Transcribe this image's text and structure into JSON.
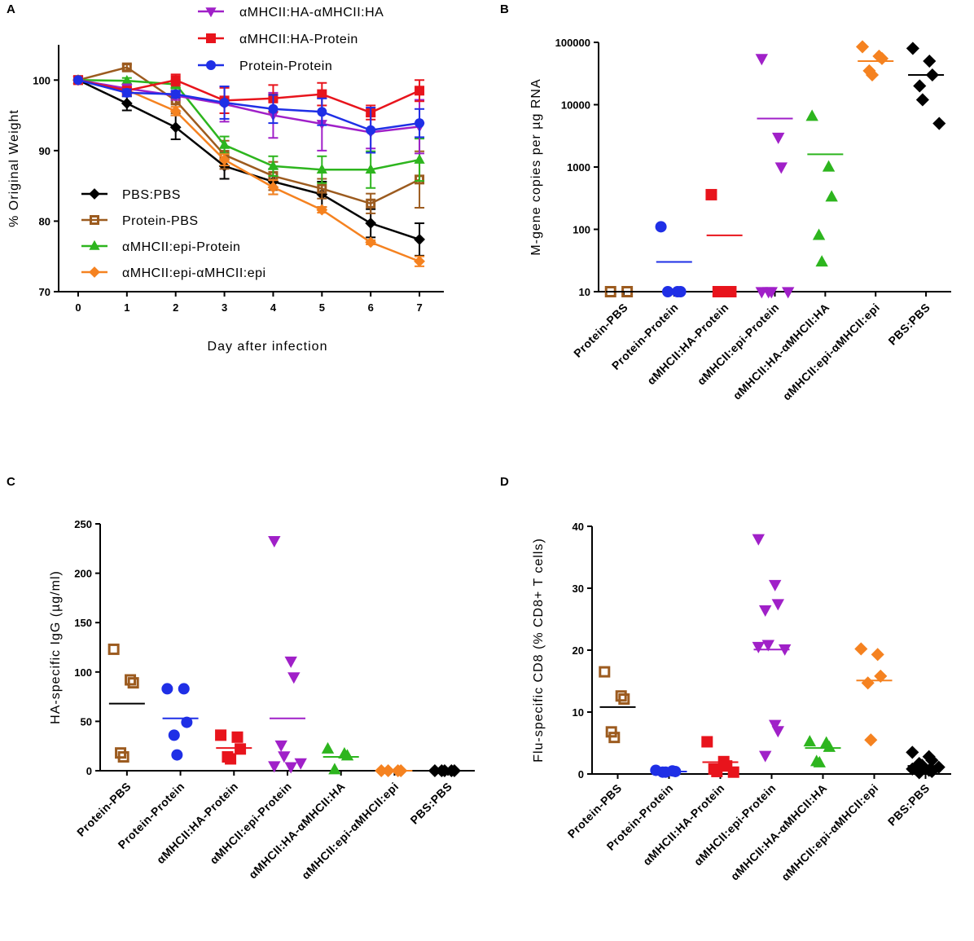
{
  "chart_data": [
    {
      "panel": "A",
      "type": "line",
      "xlabel": "Day after infection",
      "ylabel": "% Original Weight",
      "xlim": [
        -0.4,
        7.5
      ],
      "ylim": [
        70,
        105
      ],
      "xticks": [
        0,
        1,
        2,
        3,
        4,
        5,
        6,
        7
      ],
      "yticks": [
        70,
        80,
        90,
        100
      ],
      "legend_top": [
        "αMHCII:HA-αMHCII:HA",
        "αMHCII:HA-Protein",
        "Protein-Protein"
      ],
      "legend_bottom": [
        "PBS:PBS",
        "Protein-PBS",
        "αMHCII:epi-Protein",
        "αMHCII:epi-αMHCII:epi"
      ],
      "series": [
        {
          "name": "PBS:PBS",
          "color": "#000000",
          "marker": "diamond",
          "values": [
            100,
            96.7,
            93.3,
            87.8,
            85.6,
            83.8,
            79.7,
            77.4
          ],
          "errors": [
            0,
            1.0,
            1.7,
            1.8,
            1.8,
            1.8,
            2.0,
            2.3
          ]
        },
        {
          "name": "Protein-PBS",
          "color": "#9C5B1F",
          "marker": "open-square",
          "values": [
            100,
            101.8,
            97.1,
            89.4,
            86.4,
            84.6,
            82.5,
            85.9
          ],
          "errors": [
            0,
            0.4,
            1.8,
            2.0,
            2.0,
            1.4,
            1.4,
            4.0
          ]
        },
        {
          "name": "αMHCII:epi-Protein",
          "color": "#2DB51E",
          "marker": "triangle",
          "values": [
            100,
            99.9,
            99.4,
            90.8,
            87.8,
            87.3,
            87.3,
            88.7
          ],
          "errors": [
            0,
            0.4,
            0.6,
            1.2,
            1.4,
            1.9,
            2.6,
            3.0
          ]
        },
        {
          "name": "αMHCII:epi-αMHCII:epi",
          "color": "#F58220",
          "marker": "diamond",
          "values": [
            100,
            98.6,
            95.6,
            88.7,
            84.8,
            81.6,
            77.0,
            74.3
          ],
          "errors": [
            0,
            0.4,
            0.6,
            0.8,
            1.0,
            0.4,
            0.3,
            0.7
          ]
        },
        {
          "name": "αMHCII:HA-αMHCII:HA",
          "color": "#A020C8",
          "marker": "inv-triangle",
          "values": [
            100,
            98.8,
            97.8,
            96.6,
            95.0,
            93.8,
            92.6,
            93.4
          ],
          "errors": [
            0,
            0.6,
            0.6,
            2.5,
            3.2,
            3.8,
            2.3,
            3.8
          ]
        },
        {
          "name": "αMHCII:HA-Protein",
          "color": "#E8141C",
          "marker": "square",
          "values": [
            100,
            98.5,
            100.0,
            97.1,
            97.4,
            98.0,
            95.4,
            98.5
          ],
          "errors": [
            0,
            0.5,
            0.8,
            1.8,
            1.9,
            1.6,
            1.0,
            1.5
          ]
        },
        {
          "name": "Protein-Protein",
          "color": "#1F2FE6",
          "marker": "circle",
          "values": [
            100,
            98.2,
            98.0,
            96.8,
            95.9,
            95.5,
            92.9,
            93.9
          ],
          "errors": [
            0,
            0.5,
            0.5,
            2.3,
            2.0,
            1.9,
            3.2,
            2.0
          ]
        }
      ]
    },
    {
      "panel": "B",
      "type": "scatter",
      "scale": "log",
      "ylabel": "M-gene copies per µg RNA",
      "ylim": [
        10,
        100000
      ],
      "yticks": [
        10,
        100,
        1000,
        10000,
        100000
      ],
      "ytick_labels": [
        "10",
        "100",
        "1000",
        "10000",
        "100000"
      ],
      "categories": [
        "Protein-PBS",
        "Protein-Protein",
        "αMHCII:HA-Protein",
        "αMHCII:epi-Protein",
        "αMHCII:HA-αMHCII:HA",
        "αMHCII:epi-αMHCII:epi",
        "PBS:PBS"
      ],
      "groups": [
        {
          "color": "#9C5B1F",
          "marker": "open-square",
          "points": [
            10,
            10
          ],
          "mean": 10
        },
        {
          "color": "#1F2FE6",
          "marker": "circle",
          "points": [
            110,
            10,
            10,
            10
          ],
          "mean": 30
        },
        {
          "color": "#E8141C",
          "marker": "square",
          "points": [
            360,
            10,
            10,
            10
          ],
          "mean": 80
        },
        {
          "color": "#A020C8",
          "marker": "inv-triangle",
          "points": [
            55000,
            3000,
            1000,
            10,
            10,
            10,
            10
          ],
          "mean": 6000
        },
        {
          "color": "#2DB51E",
          "marker": "triangle",
          "points": [
            6500,
            1000,
            330,
            80,
            30
          ],
          "mean": 1600
        },
        {
          "color": "#F58220",
          "marker": "diamond",
          "points": [
            85000,
            60000,
            55000,
            35000,
            30000
          ],
          "mean": 50000
        },
        {
          "color": "#000000",
          "marker": "diamond",
          "points": [
            80000,
            50000,
            30000,
            20000,
            12000,
            5000
          ],
          "mean": 30000
        }
      ]
    },
    {
      "panel": "C",
      "type": "scatter",
      "ylabel": "HA-specific IgG (µg/ml)",
      "ylim": [
        0,
        250
      ],
      "yticks": [
        0,
        50,
        100,
        150,
        200,
        250
      ],
      "categories": [
        "Protein-PBS",
        "Protein-Protein",
        "αMHCII:HA-Protein",
        "αMHCII:epi-Protein",
        "αMHCII:HA-αMHCII:HA",
        "αMHCII:epi-αMHCII:epi",
        "PBS:PBS"
      ],
      "groups": [
        {
          "color": "#9C5B1F",
          "marker": "open-square",
          "points": [
            123,
            92,
            89,
            18,
            14
          ],
          "mean": 68
        },
        {
          "color": "#1F2FE6",
          "marker": "circle",
          "points": [
            83,
            83,
            49,
            36,
            16
          ],
          "mean": 53
        },
        {
          "color": "#E8141C",
          "marker": "square",
          "points": [
            36,
            34,
            22,
            14,
            12
          ],
          "mean": 23
        },
        {
          "color": "#A020C8",
          "marker": "inv-triangle",
          "points": [
            233,
            111,
            95,
            26,
            15,
            8,
            5,
            4
          ],
          "mean": 53
        },
        {
          "color": "#2DB51E",
          "marker": "triangle",
          "points": [
            22,
            17,
            15,
            1
          ],
          "mean": 14
        },
        {
          "color": "#F58220",
          "marker": "diamond",
          "points": [
            0,
            0,
            0,
            0
          ],
          "mean": 0
        },
        {
          "color": "#000000",
          "marker": "diamond",
          "points": [
            0,
            0,
            0,
            0,
            0
          ],
          "mean": 0
        }
      ]
    },
    {
      "panel": "D",
      "type": "scatter",
      "ylabel": "Flu-specific CD8 (% CD8+ T cells)",
      "ylim": [
        0,
        40
      ],
      "yticks": [
        0,
        10,
        20,
        30,
        40
      ],
      "categories": [
        "Protein-PBS",
        "Protein-Protein",
        "αMHCII:HA-Protein",
        "αMHCII:epi-Protein",
        "αMHCII:HA-αMHCII:HA",
        "αMHCII:epi-αMHCII:epi",
        "PBS:PBS"
      ],
      "groups": [
        {
          "color": "#9C5B1F",
          "marker": "open-square",
          "points": [
            16.5,
            12.6,
            12.1,
            6.8,
            5.9
          ],
          "mean": 10.8
        },
        {
          "color": "#1F2FE6",
          "marker": "circle",
          "points": [
            0.6,
            0.5,
            0.4,
            0.3,
            0.3
          ],
          "mean": 0.4
        },
        {
          "color": "#E8141C",
          "marker": "square",
          "points": [
            5.2,
            2.0,
            1.3,
            0.8,
            0.4,
            0.3
          ],
          "mean": 1.9
        },
        {
          "color": "#A020C8",
          "marker": "inv-triangle",
          "points": [
            38,
            30.6,
            27.5,
            26.5,
            20.9,
            20.2,
            20.6,
            8.0,
            7.0,
            3.0
          ],
          "mean": 20.1
        },
        {
          "color": "#2DB51E",
          "marker": "triangle",
          "points": [
            5.2,
            5.0,
            4.3,
            2.0,
            1.8
          ],
          "mean": 4.2
        },
        {
          "color": "#F58220",
          "marker": "diamond",
          "points": [
            20.2,
            19.3,
            15.8,
            14.7,
            5.5
          ],
          "mean": 15.1
        },
        {
          "color": "#000000",
          "marker": "diamond",
          "points": [
            3.5,
            2.8,
            2.2,
            1.7,
            1.4,
            1.1,
            0.8,
            0.6,
            0.4,
            0.2
          ],
          "mean": 1.3
        }
      ]
    }
  ]
}
